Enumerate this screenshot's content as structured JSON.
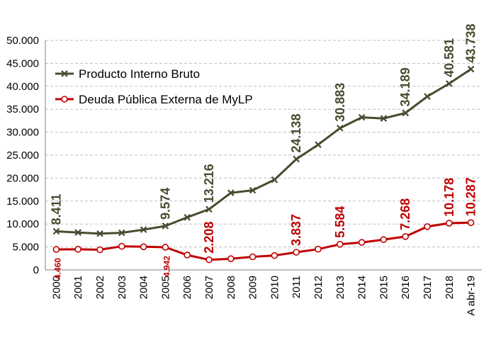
{
  "chart_data": {
    "type": "line",
    "categories": [
      "2000",
      "2001",
      "2002",
      "2003",
      "2004",
      "2005",
      "2006",
      "2007",
      "2008",
      "2009",
      "2010",
      "2011",
      "2012",
      "2013",
      "2014",
      "2015",
      "2016",
      "2017",
      "2018",
      "A abr-19"
    ],
    "ylim": [
      0,
      50000
    ],
    "yticks": [
      "0",
      "5.000",
      "10.000",
      "15.000",
      "20.000",
      "25.000",
      "30.000",
      "35.000",
      "40.000",
      "45.000",
      "50.000"
    ],
    "grid": true,
    "legend_position": "top-left",
    "series": [
      {
        "name": "Producto Interno Bruto",
        "color": "#4a4a30",
        "marker": "x",
        "values": [
          8411,
          8154,
          7905,
          8083,
          8773,
          9574,
          11452,
          13216,
          16792,
          17340,
          19650,
          24138,
          27282,
          30883,
          33237,
          33000,
          34189,
          37782,
          40581,
          43738
        ],
        "labels": [
          {
            "index": 0,
            "text": "8.411"
          },
          {
            "index": 5,
            "text": "9.574"
          },
          {
            "index": 7,
            "text": "13.216"
          },
          {
            "index": 11,
            "text": "24.138"
          },
          {
            "index": 13,
            "text": "30.883"
          },
          {
            "index": 16,
            "text": "34.189"
          },
          {
            "index": 18,
            "text": "40.581"
          },
          {
            "index": 19,
            "text": "43.738"
          }
        ]
      },
      {
        "name": "Deuda Pública Externa de MyLP",
        "color": "#c00000",
        "marker": "circle",
        "values": [
          4460,
          4497,
          4400,
          5142,
          5045,
          4942,
          3248,
          2208,
          2443,
          2854,
          3135,
          3837,
          4525,
          5584,
          5995,
          6600,
          7268,
          9428,
          10178,
          10287
        ],
        "labels": [
          {
            "index": 0,
            "text": "4.460",
            "small": true
          },
          {
            "index": 5,
            "text": "4.942",
            "small": true
          },
          {
            "index": 7,
            "text": "2.208"
          },
          {
            "index": 11,
            "text": "3.837"
          },
          {
            "index": 13,
            "text": "5.584"
          },
          {
            "index": 16,
            "text": "7.268"
          },
          {
            "index": 18,
            "text": "10.178"
          },
          {
            "index": 19,
            "text": "10.287"
          }
        ]
      }
    ]
  }
}
